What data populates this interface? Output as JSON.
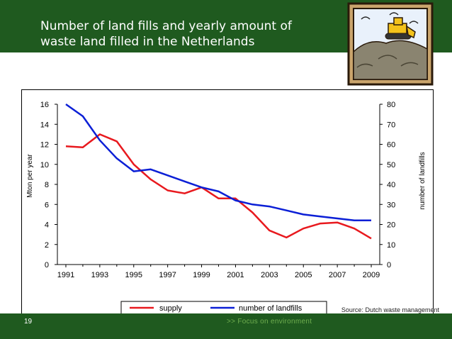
{
  "slide": {
    "title_line1": "Number of land fills and yearly amount of",
    "title_line2": "waste land filled in the Netherlands",
    "page_number": "19",
    "footer_text": ">>  Focus on environment",
    "source_text": "Source: Dutch waste management department",
    "colors": {
      "header": "#1f5a1f",
      "footer_text": "#6fae4f"
    }
  },
  "chart_data": {
    "type": "line",
    "title": "",
    "xlabel": "",
    "ylabel_left": "Mton per year",
    "ylabel_right": "number of landfills",
    "x_ticks": [
      "1991",
      "1993",
      "1995",
      "1997",
      "1999",
      "2001",
      "2003",
      "2005",
      "2007",
      "2009"
    ],
    "y_left_ticks": [
      "0",
      "2",
      "4",
      "6",
      "8",
      "10",
      "12",
      "14",
      "16"
    ],
    "y_right_ticks": [
      "0",
      "10",
      "20",
      "30",
      "40",
      "50",
      "60",
      "70",
      "80"
    ],
    "ylim_left": [
      0,
      16
    ],
    "ylim_right": [
      0,
      80
    ],
    "xlim": [
      1990.5,
      2009.5
    ],
    "legend_position": "bottom",
    "series": [
      {
        "name": "supply",
        "axis": "left",
        "color": "#e8191e",
        "x": [
          1991,
          1992,
          1993,
          1994,
          1995,
          1996,
          1997,
          1998,
          1999,
          2000,
          2001,
          2002,
          2003,
          2004,
          2005,
          2006,
          2007,
          2008,
          2009
        ],
        "values": [
          11.8,
          11.7,
          13.0,
          12.3,
          10.0,
          8.5,
          7.4,
          7.1,
          7.7,
          6.6,
          6.6,
          5.2,
          3.4,
          2.7,
          3.6,
          4.1,
          4.2,
          3.6,
          2.6
        ]
      },
      {
        "name": "number of landfills",
        "axis": "right",
        "color": "#0b1fd6",
        "x": [
          1991,
          1992,
          1993,
          1994,
          1995,
          1996,
          1997,
          1998,
          1999,
          2000,
          2001,
          2002,
          2003,
          2004,
          2005,
          2006,
          2007,
          2008,
          2009
        ],
        "values": [
          80,
          74,
          62,
          53,
          46.5,
          47.5,
          44.5,
          41.5,
          38.5,
          36.5,
          32,
          30,
          29,
          27,
          25,
          24,
          23,
          22,
          22
        ]
      }
    ]
  }
}
